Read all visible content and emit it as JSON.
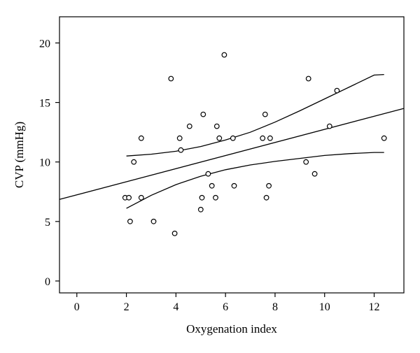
{
  "chart_data": {
    "type": "scatter",
    "xlabel": "Oxygenation index",
    "ylabel": "CVP (mmHg)",
    "xlim": [
      -0.7,
      13.2
    ],
    "ylim": [
      -1.0,
      22.2
    ],
    "xticks": [
      0,
      2,
      4,
      6,
      8,
      10,
      12
    ],
    "yticks": [
      0,
      5,
      10,
      15,
      20
    ],
    "grid": false,
    "points": [
      {
        "x": 1.95,
        "y": 7
      },
      {
        "x": 2.1,
        "y": 7
      },
      {
        "x": 2.15,
        "y": 5
      },
      {
        "x": 2.3,
        "y": 10
      },
      {
        "x": 2.6,
        "y": 12
      },
      {
        "x": 2.6,
        "y": 7
      },
      {
        "x": 3.1,
        "y": 5
      },
      {
        "x": 3.8,
        "y": 17
      },
      {
        "x": 3.95,
        "y": 4
      },
      {
        "x": 4.15,
        "y": 12
      },
      {
        "x": 4.2,
        "y": 11
      },
      {
        "x": 4.55,
        "y": 13
      },
      {
        "x": 5.0,
        "y": 6
      },
      {
        "x": 5.05,
        "y": 7
      },
      {
        "x": 5.1,
        "y": 14
      },
      {
        "x": 5.3,
        "y": 9
      },
      {
        "x": 5.45,
        "y": 8
      },
      {
        "x": 5.6,
        "y": 7
      },
      {
        "x": 5.65,
        "y": 13
      },
      {
        "x": 5.75,
        "y": 12
      },
      {
        "x": 5.95,
        "y": 19
      },
      {
        "x": 6.3,
        "y": 12
      },
      {
        "x": 6.35,
        "y": 8
      },
      {
        "x": 7.5,
        "y": 12
      },
      {
        "x": 7.6,
        "y": 14
      },
      {
        "x": 7.65,
        "y": 7
      },
      {
        "x": 7.75,
        "y": 8
      },
      {
        "x": 7.8,
        "y": 12
      },
      {
        "x": 9.25,
        "y": 10
      },
      {
        "x": 9.35,
        "y": 17
      },
      {
        "x": 9.6,
        "y": 9
      },
      {
        "x": 10.2,
        "y": 13
      },
      {
        "x": 10.5,
        "y": 16
      },
      {
        "x": 12.4,
        "y": 12
      }
    ],
    "regression_line": [
      {
        "x": -0.7,
        "y": 6.85
      },
      {
        "x": 13.2,
        "y": 14.5
      }
    ],
    "confidence_upper": [
      {
        "x": 2.0,
        "y": 10.5
      },
      {
        "x": 3.0,
        "y": 10.65
      },
      {
        "x": 4.0,
        "y": 10.9
      },
      {
        "x": 5.0,
        "y": 11.3
      },
      {
        "x": 6.0,
        "y": 11.85
      },
      {
        "x": 7.0,
        "y": 12.5
      },
      {
        "x": 8.0,
        "y": 13.35
      },
      {
        "x": 9.0,
        "y": 14.3
      },
      {
        "x": 10.0,
        "y": 15.3
      },
      {
        "x": 11.0,
        "y": 16.3
      },
      {
        "x": 12.0,
        "y": 17.3
      },
      {
        "x": 12.4,
        "y": 17.35
      }
    ],
    "confidence_lower": [
      {
        "x": 2.0,
        "y": 6.1
      },
      {
        "x": 3.0,
        "y": 7.2
      },
      {
        "x": 4.0,
        "y": 8.1
      },
      {
        "x": 5.0,
        "y": 8.8
      },
      {
        "x": 6.0,
        "y": 9.35
      },
      {
        "x": 7.0,
        "y": 9.75
      },
      {
        "x": 8.0,
        "y": 10.05
      },
      {
        "x": 9.0,
        "y": 10.3
      },
      {
        "x": 10.0,
        "y": 10.55
      },
      {
        "x": 11.0,
        "y": 10.7
      },
      {
        "x": 12.0,
        "y": 10.8
      },
      {
        "x": 12.4,
        "y": 10.8
      }
    ]
  }
}
